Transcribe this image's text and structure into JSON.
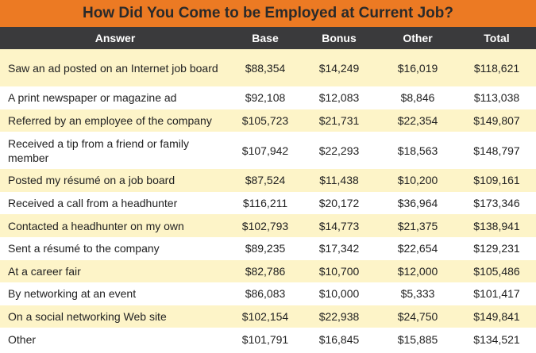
{
  "header": {
    "title": "How Did You Come to be Employed at Current Job?"
  },
  "table": {
    "columns": [
      "Answer",
      "Base",
      "Bonus",
      "Other",
      "Total"
    ],
    "rows": [
      [
        "Saw an ad posted on an Internet job board",
        "$88,354",
        "$14,249",
        "$16,019",
        "$118,621"
      ],
      [
        "A print newspaper or magazine ad",
        "$92,108",
        "$12,083",
        "$8,846",
        "$113,038"
      ],
      [
        "Referred by an employee of the company",
        "$105,723",
        "$21,731",
        "$22,354",
        "$149,807"
      ],
      [
        "Received a tip from a friend or family member",
        "$107,942",
        "$22,293",
        "$18,563",
        "$148,797"
      ],
      [
        "Posted my résumé on a job board",
        "$87,524",
        "$11,438",
        "$10,200",
        "$109,161"
      ],
      [
        "Received a call from a headhunter",
        "$116,211",
        "$20,172",
        "$36,964",
        "$173,346"
      ],
      [
        "Contacted a headhunter on my own",
        "$102,793",
        "$14,773",
        "$21,375",
        "$138,941"
      ],
      [
        "Sent a résumé to the company",
        "$89,235",
        "$17,342",
        "$22,654",
        "$129,231"
      ],
      [
        "At a career fair",
        "$82,786",
        "$10,700",
        "$12,000",
        "$105,486"
      ],
      [
        "By networking at an event",
        "$86,083",
        "$10,000",
        "$5,333",
        "$101,417"
      ],
      [
        "On a social networking Web site",
        "$102,154",
        "$22,938",
        "$24,750",
        "$149,841"
      ],
      [
        "Other",
        "$101,791",
        "$16,845",
        "$15,885",
        "$134,521"
      ]
    ]
  }
}
